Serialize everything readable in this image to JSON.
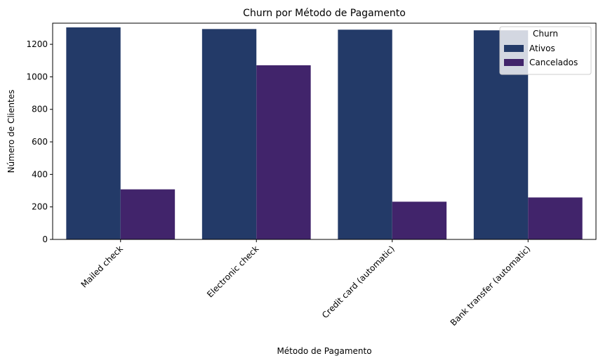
{
  "chart_data": {
    "type": "bar",
    "title": "Churn por Método de Pagamento",
    "xlabel": "Método de Pagamento",
    "ylabel": "Número de Clientes",
    "categories": [
      "Mailed check",
      "Electronic check",
      "Credit card (automatic)",
      "Bank transfer (automatic)"
    ],
    "series": [
      {
        "name": "Ativos",
        "values": [
          1304,
          1294,
          1290,
          1286
        ],
        "color": "#233a68"
      },
      {
        "name": "Cancelados",
        "values": [
          308,
          1071,
          232,
          258
        ],
        "color": "#41246b"
      }
    ],
    "ylim": [
      0,
      1330
    ],
    "yticks": [
      0,
      200,
      400,
      600,
      800,
      1000,
      1200
    ],
    "legend": {
      "title": "Churn",
      "position": "top-right"
    },
    "grid": false
  }
}
